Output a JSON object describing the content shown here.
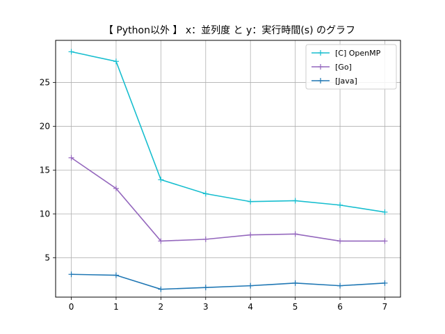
{
  "chart_data": {
    "type": "line",
    "title": "【 Python以外 】 x：並列度 と y：実行時間(s) のグラフ",
    "xlabel": "",
    "ylabel": "",
    "x": [
      0,
      1,
      2,
      3,
      4,
      5,
      6,
      7
    ],
    "xlim": [
      -0.35,
      7.35
    ],
    "ylim": [
      0.5,
      29.8
    ],
    "xticks": [
      0,
      1,
      2,
      3,
      4,
      5,
      6,
      7
    ],
    "yticks": [
      5,
      10,
      15,
      20,
      25
    ],
    "grid": true,
    "legend_position": "top-right",
    "series": [
      {
        "name": "[C] OpenMP",
        "color": "#17becf",
        "marker": "+",
        "values": [
          28.5,
          27.4,
          13.9,
          12.3,
          11.4,
          11.5,
          11.0,
          10.2
        ]
      },
      {
        "name": "[Go]",
        "color": "#9467bd",
        "marker": "+",
        "values": [
          16.4,
          12.9,
          6.9,
          7.1,
          7.6,
          7.7,
          6.9,
          6.9
        ]
      },
      {
        "name": "[Java]",
        "color": "#1f77b4",
        "marker": "+",
        "values": [
          3.1,
          3.0,
          1.4,
          1.6,
          1.8,
          2.1,
          1.8,
          2.1
        ]
      }
    ]
  }
}
